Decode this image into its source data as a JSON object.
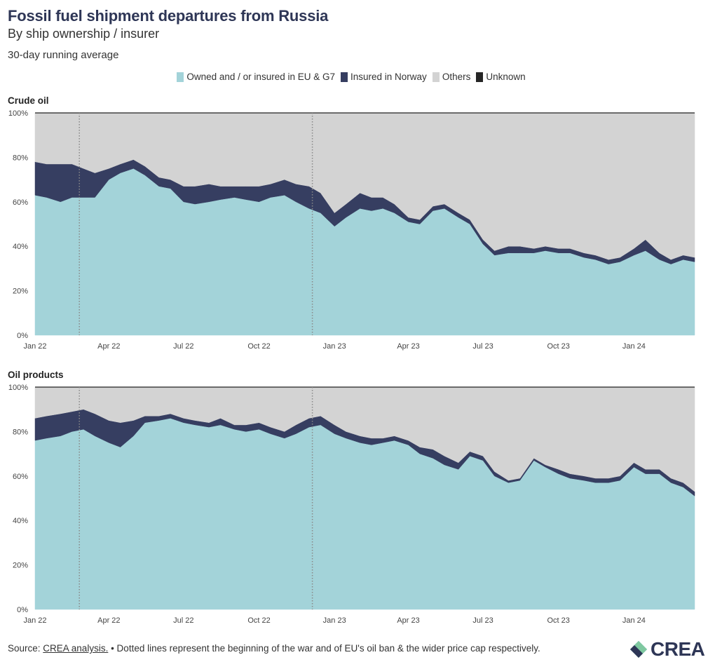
{
  "header": {
    "title": "Fossil fuel shipment departures from Russia",
    "subtitle": "By ship ownership / insurer",
    "note": "30-day running average"
  },
  "legend": [
    {
      "label": "Owned and / or insured in EU & G7",
      "color": "#a3d3d9"
    },
    {
      "label": "Insured in Norway",
      "color": "#363e61"
    },
    {
      "label": "Others",
      "color": "#d3d3d3"
    },
    {
      "label": "Unknown",
      "color": "#262626"
    }
  ],
  "footer": {
    "source_prefix": "Source: ",
    "source_link": "CREA analysis.",
    "text": " • Dotted lines represent the beginning of the war and of EU's oil ban & the wider price cap respectively."
  },
  "logo": {
    "text": "CREA"
  },
  "chart_data": [
    {
      "type": "area",
      "title": "Crude oil",
      "stacked": true,
      "x_range": [
        "2022-01-01",
        "2024-03-15"
      ],
      "ylim": [
        0,
        100
      ],
      "y_ticks": [
        "0%",
        "20%",
        "40%",
        "60%",
        "80%",
        "100%"
      ],
      "x_ticks": [
        "Jan 22",
        "Apr 22",
        "Jul 22",
        "Oct 22",
        "Jan 23",
        "Apr 23",
        "Jul 23",
        "Oct 23",
        "Jan 24"
      ],
      "vlines": [
        "2022-02-24",
        "2022-12-05"
      ],
      "x": [
        "2022-01-01",
        "2022-01-15",
        "2022-02-01",
        "2022-02-15",
        "2022-03-01",
        "2022-03-15",
        "2022-04-01",
        "2022-04-15",
        "2022-05-01",
        "2022-05-15",
        "2022-06-01",
        "2022-06-15",
        "2022-07-01",
        "2022-07-15",
        "2022-08-01",
        "2022-08-15",
        "2022-09-01",
        "2022-09-15",
        "2022-10-01",
        "2022-10-15",
        "2022-11-01",
        "2022-11-15",
        "2022-12-01",
        "2022-12-15",
        "2023-01-01",
        "2023-01-15",
        "2023-02-01",
        "2023-02-15",
        "2023-03-01",
        "2023-03-15",
        "2023-04-01",
        "2023-04-15",
        "2023-05-01",
        "2023-05-15",
        "2023-06-01",
        "2023-06-15",
        "2023-07-01",
        "2023-07-15",
        "2023-08-01",
        "2023-08-15",
        "2023-09-01",
        "2023-09-15",
        "2023-10-01",
        "2023-10-15",
        "2023-11-01",
        "2023-11-15",
        "2023-12-01",
        "2023-12-15",
        "2024-01-01",
        "2024-01-15",
        "2024-02-01",
        "2024-02-15",
        "2024-03-01",
        "2024-03-15"
      ],
      "series": [
        {
          "name": "Owned and / or insured in EU & G7",
          "color": "#a3d3d9",
          "values": [
            63,
            62,
            60,
            62,
            62,
            62,
            70,
            73,
            75,
            72,
            67,
            66,
            60,
            59,
            60,
            61,
            62,
            61,
            60,
            62,
            63,
            60,
            57,
            55,
            49,
            53,
            57,
            56,
            57,
            55,
            51,
            50,
            56,
            57,
            53,
            50,
            41,
            36,
            37,
            37,
            37,
            38,
            37,
            37,
            35,
            34,
            32,
            33,
            36,
            38,
            34,
            32,
            34,
            33
          ]
        },
        {
          "name": "Insured in Norway",
          "color": "#363e61",
          "values": [
            15,
            15,
            17,
            15,
            13,
            11,
            5,
            4,
            4,
            4,
            4,
            4,
            7,
            8,
            8,
            6,
            5,
            6,
            7,
            6,
            7,
            8,
            10,
            9,
            6,
            6,
            7,
            6,
            5,
            4,
            2,
            2,
            2,
            2,
            2,
            2,
            2,
            2,
            3,
            3,
            2,
            2,
            2,
            2,
            2,
            2,
            2,
            2,
            3,
            5,
            3,
            2,
            2,
            2
          ]
        },
        {
          "name": "Others",
          "color": "#d3d3d3",
          "values": [
            22,
            23,
            23,
            23,
            25,
            27,
            25,
            23,
            21,
            24,
            29,
            30,
            33,
            33,
            32,
            33,
            33,
            33,
            33,
            32,
            30,
            32,
            33,
            36,
            45,
            41,
            36,
            38,
            38,
            41,
            47,
            48,
            42,
            41,
            45,
            48,
            57,
            62,
            60,
            60,
            61,
            60,
            61,
            61,
            63,
            64,
            66,
            65,
            61,
            57,
            63,
            66,
            64,
            65
          ]
        },
        {
          "name": "Unknown",
          "color": "#262626",
          "values": [
            0,
            0,
            0,
            0,
            0,
            0,
            0,
            0,
            0,
            0,
            0,
            0,
            0,
            0,
            0,
            0,
            0,
            0,
            0,
            0,
            0,
            0,
            0,
            0,
            0,
            0,
            0,
            0,
            0,
            0,
            0,
            0,
            0,
            0,
            0,
            0,
            0,
            0,
            0,
            0,
            0,
            0,
            0,
            0,
            0,
            0,
            0,
            0,
            0,
            0,
            0,
            0,
            0,
            0
          ]
        }
      ]
    },
    {
      "type": "area",
      "title": "Oil products",
      "stacked": true,
      "x_range": [
        "2022-01-01",
        "2024-03-15"
      ],
      "ylim": [
        0,
        100
      ],
      "y_ticks": [
        "0%",
        "20%",
        "40%",
        "60%",
        "80%",
        "100%"
      ],
      "x_ticks": [
        "Jan 22",
        "Apr 22",
        "Jul 22",
        "Oct 22",
        "Jan 23",
        "Apr 23",
        "Jul 23",
        "Oct 23",
        "Jan 24"
      ],
      "vlines": [
        "2022-02-24",
        "2022-12-05"
      ],
      "x": [
        "2022-01-01",
        "2022-01-15",
        "2022-02-01",
        "2022-02-15",
        "2022-03-01",
        "2022-03-15",
        "2022-04-01",
        "2022-04-15",
        "2022-05-01",
        "2022-05-15",
        "2022-06-01",
        "2022-06-15",
        "2022-07-01",
        "2022-07-15",
        "2022-08-01",
        "2022-08-15",
        "2022-09-01",
        "2022-09-15",
        "2022-10-01",
        "2022-10-15",
        "2022-11-01",
        "2022-11-15",
        "2022-12-01",
        "2022-12-15",
        "2023-01-01",
        "2023-01-15",
        "2023-02-01",
        "2023-02-15",
        "2023-03-01",
        "2023-03-15",
        "2023-04-01",
        "2023-04-15",
        "2023-05-01",
        "2023-05-15",
        "2023-06-01",
        "2023-06-15",
        "2023-07-01",
        "2023-07-15",
        "2023-08-01",
        "2023-08-15",
        "2023-09-01",
        "2023-09-15",
        "2023-10-01",
        "2023-10-15",
        "2023-11-01",
        "2023-11-15",
        "2023-12-01",
        "2023-12-15",
        "2024-01-01",
        "2024-01-15",
        "2024-02-01",
        "2024-02-15",
        "2024-03-01",
        "2024-03-15"
      ],
      "series": [
        {
          "name": "Owned and / or insured in EU & G7",
          "color": "#a3d3d9",
          "values": [
            76,
            77,
            78,
            80,
            81,
            78,
            75,
            73,
            78,
            84,
            85,
            86,
            84,
            83,
            82,
            83,
            81,
            80,
            81,
            79,
            77,
            79,
            82,
            83,
            79,
            77,
            75,
            74,
            75,
            76,
            74,
            70,
            68,
            65,
            63,
            69,
            67,
            60,
            57,
            58,
            67,
            64,
            61,
            59,
            58,
            57,
            57,
            58,
            64,
            61,
            61,
            57,
            55,
            51
          ]
        },
        {
          "name": "Insured in Norway",
          "color": "#363e61",
          "values": [
            10,
            10,
            10,
            9,
            9,
            10,
            10,
            11,
            7,
            3,
            2,
            2,
            2,
            2,
            2,
            3,
            2,
            3,
            3,
            3,
            3,
            4,
            4,
            4,
            4,
            3,
            3,
            3,
            2,
            2,
            2,
            3,
            4,
            4,
            3,
            2,
            2,
            2,
            1,
            1,
            1,
            1,
            2,
            2,
            2,
            2,
            2,
            2,
            2,
            2,
            2,
            2,
            2,
            2
          ]
        },
        {
          "name": "Others",
          "color": "#d3d3d3",
          "values": [
            14,
            13,
            12,
            11,
            10,
            12,
            15,
            16,
            15,
            13,
            13,
            12,
            14,
            15,
            16,
            14,
            17,
            17,
            16,
            18,
            20,
            17,
            14,
            13,
            17,
            20,
            22,
            23,
            23,
            22,
            24,
            27,
            28,
            31,
            34,
            29,
            31,
            38,
            42,
            41,
            32,
            35,
            37,
            39,
            40,
            41,
            41,
            40,
            34,
            37,
            37,
            41,
            43,
            47
          ]
        },
        {
          "name": "Unknown",
          "color": "#262626",
          "values": [
            0,
            0,
            0,
            0,
            0,
            0,
            0,
            0,
            0,
            0,
            0,
            0,
            0,
            0,
            0,
            0,
            0,
            0,
            0,
            0,
            0,
            0,
            0,
            0,
            0,
            0,
            0,
            0,
            0,
            0,
            0,
            0,
            0,
            0,
            0,
            0,
            0,
            0,
            0,
            0,
            0,
            0,
            0,
            0,
            0,
            0,
            0,
            0,
            0,
            0,
            0,
            0,
            0,
            0
          ]
        }
      ]
    }
  ]
}
